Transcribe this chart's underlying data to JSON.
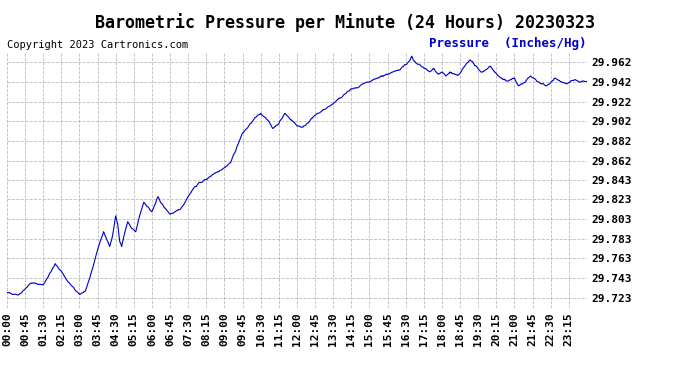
{
  "title": "Barometric Pressure per Minute (24 Hours) 20230323",
  "copyright_text": "Copyright 2023 Cartronics.com",
  "ylabel": "Pressure  (Inches/Hg)",
  "line_color": "#0000cc",
  "background_color": "#ffffff",
  "grid_color": "#aaaaaa",
  "yticks": [
    29.723,
    29.743,
    29.763,
    29.783,
    29.803,
    29.823,
    29.843,
    29.862,
    29.882,
    29.902,
    29.922,
    29.942,
    29.962
  ],
  "ylim": [
    29.713,
    29.972
  ],
  "xtick_labels": [
    "00:00",
    "00:45",
    "01:30",
    "02:15",
    "03:00",
    "03:45",
    "04:30",
    "05:15",
    "06:00",
    "06:45",
    "07:30",
    "08:15",
    "09:00",
    "09:45",
    "10:30",
    "11:15",
    "12:00",
    "12:45",
    "13:30",
    "14:15",
    "15:00",
    "15:45",
    "16:30",
    "17:15",
    "18:00",
    "18:45",
    "19:30",
    "20:15",
    "21:00",
    "21:45",
    "22:30",
    "23:15"
  ],
  "title_fontsize": 12,
  "tick_fontsize": 8,
  "ylabel_fontsize": 9,
  "copyright_fontsize": 7.5,
  "keypoints_x": [
    0,
    30,
    60,
    90,
    120,
    135,
    150,
    165,
    180,
    195,
    210,
    225,
    240,
    255,
    260,
    265,
    270,
    275,
    280,
    285,
    290,
    300,
    310,
    320,
    330,
    340,
    350,
    360,
    375,
    390,
    405,
    420,
    435,
    450,
    465,
    480,
    495,
    510,
    540,
    555,
    570,
    585,
    600,
    615,
    630,
    645,
    660,
    675,
    690,
    705,
    720,
    735,
    750,
    765,
    780,
    795,
    810,
    825,
    840,
    855,
    870,
    885,
    900,
    915,
    930,
    945,
    960,
    975,
    990,
    1000,
    1005,
    1010,
    1020,
    1030,
    1040,
    1050,
    1060,
    1070,
    1080,
    1090,
    1100,
    1110,
    1120,
    1140,
    1150,
    1160,
    1170,
    1180,
    1200,
    1210,
    1220,
    1230,
    1240,
    1260,
    1270,
    1280,
    1290,
    1300,
    1310,
    1320,
    1330,
    1340,
    1350,
    1360,
    1370,
    1380,
    1390,
    1400,
    1410,
    1420,
    1430,
    1439
  ],
  "keypoints_y": [
    29.728,
    29.726,
    29.738,
    29.736,
    29.757,
    29.75,
    29.74,
    29.733,
    29.726,
    29.73,
    29.748,
    29.772,
    29.79,
    29.775,
    29.782,
    29.793,
    29.806,
    29.798,
    29.78,
    29.775,
    29.785,
    29.8,
    29.793,
    29.79,
    29.807,
    29.82,
    29.815,
    29.81,
    29.825,
    29.815,
    29.808,
    29.81,
    29.815,
    29.826,
    29.835,
    29.84,
    29.843,
    29.848,
    29.855,
    29.86,
    29.875,
    29.89,
    29.897,
    29.905,
    29.91,
    29.905,
    29.895,
    29.9,
    29.91,
    29.904,
    29.898,
    29.896,
    29.902,
    29.908,
    29.912,
    29.916,
    29.92,
    29.925,
    29.93,
    29.935,
    29.936,
    29.94,
    29.942,
    29.945,
    29.948,
    29.95,
    29.952,
    29.955,
    29.96,
    29.963,
    29.968,
    29.963,
    29.96,
    29.958,
    29.955,
    29.952,
    29.956,
    29.95,
    29.952,
    29.948,
    29.952,
    29.95,
    29.948,
    29.96,
    29.965,
    29.96,
    29.955,
    29.952,
    29.958,
    29.953,
    29.948,
    29.945,
    29.943,
    29.946,
    29.938,
    29.94,
    29.944,
    29.948,
    29.945,
    29.942,
    29.94,
    29.938,
    29.942,
    29.946,
    29.944,
    29.941,
    29.94,
    29.943,
    29.944,
    29.942,
    29.943,
    29.942
  ]
}
